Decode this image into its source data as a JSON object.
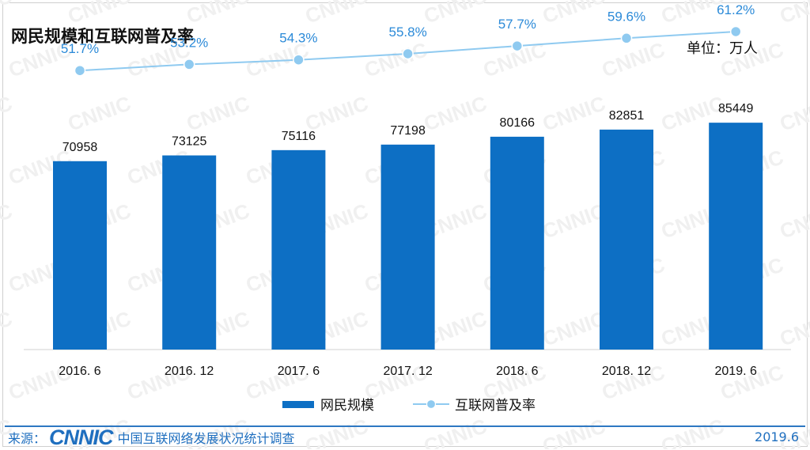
{
  "header": {
    "title": "网民规模和互联网普及率",
    "unit": "单位：万人"
  },
  "chart_data": {
    "type": "bar",
    "categories": [
      "2016. 6",
      "2016. 12",
      "2017. 6",
      "2017. 12",
      "2018. 6",
      "2018. 12",
      "2019. 6"
    ],
    "series": [
      {
        "name": "网民规模",
        "type": "bar",
        "color": "#0d6fc4",
        "values": [
          70958,
          73125,
          75116,
          77198,
          80166,
          82851,
          85449
        ]
      },
      {
        "name": "互联网普及率",
        "type": "line",
        "color": "#8fcaf0",
        "values": [
          51.7,
          53.2,
          54.3,
          55.8,
          57.7,
          59.6,
          61.2
        ],
        "labels": [
          "51.7%",
          "53.2%",
          "54.3%",
          "55.8%",
          "57.7%",
          "59.6%",
          "61.2%"
        ]
      }
    ],
    "ylim": [
      0,
      100000
    ],
    "y2lim": [
      0,
      100
    ],
    "label_color_bar": "#111111",
    "label_color_line": "#2b8ad8",
    "legend_position": "bottom-center"
  },
  "footer": {
    "source_label": "来源：",
    "logo": "CNNIC",
    "org": "中国互联网络发展状况统计调查",
    "date": "2019.6"
  },
  "watermark": "CNNIC"
}
